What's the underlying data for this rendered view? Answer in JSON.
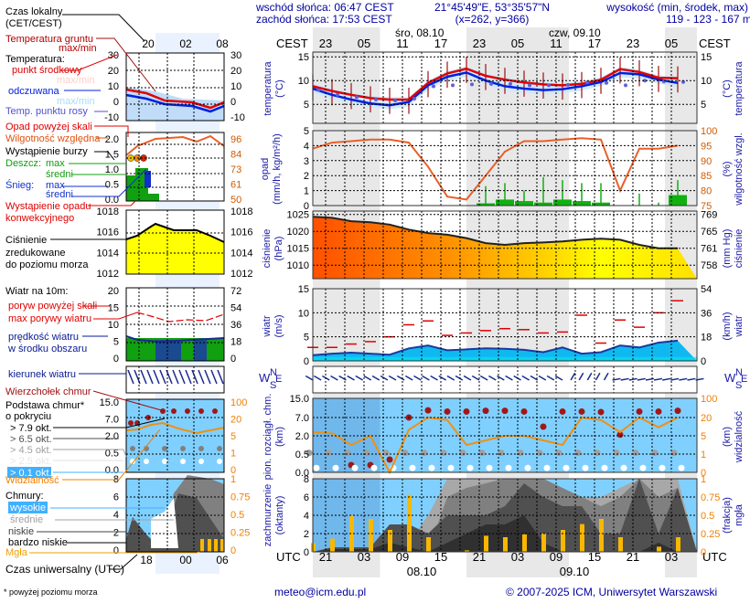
{
  "header": {
    "sunrise": "wschód słońca: 06:47 CEST",
    "sunset": "zachód słońca: 17:53 CEST",
    "coords": "21°45'49\"E, 53°35'57\"N",
    "grid": "(x=262,  y=366)",
    "altitude_title": "wysokość (min, środek, max)",
    "altitude_values": "119 - 123 - 167 m"
  },
  "time_axis": {
    "local_label": "CEST",
    "utc_label": "UTC",
    "local_ticks": [
      "23",
      "05",
      "11",
      "17",
      "23",
      "05",
      "11",
      "17",
      "23",
      "05"
    ],
    "utc_ticks": [
      "21",
      "03",
      "09",
      "15",
      "21",
      "03",
      "09",
      "15",
      "21",
      "03"
    ],
    "day_labels_top": [
      "śro, 08.10",
      "czw, 09.10"
    ],
    "day_labels_bottom": [
      "08.10",
      "09.10"
    ]
  },
  "legend": {
    "local_time": "Czas lokalny",
    "local_time_sub": "(CET/CEST)",
    "local_ticks": [
      "20",
      "02",
      "08"
    ],
    "utc_ticks": [
      "18",
      "00",
      "06"
    ],
    "ground_temp": "Temperatura gruntu",
    "ground_temp_sub": "max/min",
    "temperature": "Temperatura:",
    "mid_point": "punkt środkowy",
    "max_min": "max/min",
    "perceived": "odczuwana",
    "perceived_max_min": "max/min",
    "dew_point": "Temp. punktu rosy",
    "precip_above": "Opad powyżej skali",
    "humidity": "Wilgotność względna",
    "storm": "Wystąpienie burzy",
    "rain": "Deszcz:",
    "rain_max": "max",
    "rain_avg": "średni",
    "snow": "Śnieg:",
    "snow_max": "max",
    "snow_avg": "średni",
    "convective1": "Wystąpienie opadu",
    "convective2": "konwekcyjnego",
    "pressure1": "Ciśnienie",
    "pressure2": "zredukowane",
    "pressure3": "do poziomu morza",
    "wind10": "Wiatr na 10m:",
    "gust_above": "poryw powyżej skali",
    "max_gusts": "max porywy wiatru",
    "wind_speed1": "prędkość wiatru",
    "wind_speed2": "w środku obszaru",
    "wind_dir": "kierunek wiatru",
    "cloud_top": "Wierzchołek chmur",
    "cloud_base1": "Podstawa chmur*",
    "cloud_base2": "o pokryciu",
    "okt79": "> 7.9 okt.",
    "okt65": "> 6.5 okt.",
    "okt45": "> 4.5 okt.",
    "okt25": "> 2.5 okt.",
    "okt01": "> 0.1 okt.",
    "visibility": "Widzialność",
    "clouds": "Chmury:",
    "high": "wysokie",
    "mid": "średnie",
    "low": "niskie",
    "very_low": "bardzo niskie",
    "fog": "Mgła",
    "utc_time": "Czas uniwersalny (UTC)",
    "footnote": "* powyżej poziomu morza",
    "temp_ticks": [
      "30",
      "20",
      "10",
      "0",
      "-10"
    ],
    "precip_ticks": [
      "2.0",
      "1.5",
      "1.0",
      "0.5",
      "0.0"
    ],
    "hum_ticks": [
      "96",
      "84",
      "73",
      "61",
      "50"
    ],
    "press_ticks": [
      "1018",
      "1016",
      "1014",
      "1012"
    ],
    "wind_ticks": [
      "20",
      "15",
      "10",
      "5",
      "0"
    ],
    "wind_kmh_ticks": [
      "72",
      "54",
      "36",
      "18",
      "0"
    ],
    "cloud_ticks": [
      "15.0",
      "7.0",
      "2.0",
      "0.5",
      "0.0"
    ],
    "vis_ticks": [
      "100",
      "20",
      "5",
      "1",
      "0"
    ],
    "okt_ticks": [
      "8",
      "6",
      "4",
      "2",
      "0"
    ],
    "fog_ticks": [
      "1",
      "0.75",
      "0.5",
      "0.25",
      "0"
    ]
  },
  "footer": {
    "email": "meteo@icm.edu.pl",
    "copyright": "© 2007-2025 ICM, Uniwersytet Warszawski"
  },
  "colors": {
    "title_blue": "#0000a0",
    "axis_blue": "#1a1aa8",
    "orange_axis": "#d25a00",
    "temp_red": "#e00000",
    "temp_blue": "#0020e0",
    "humidity_line": "#e8602a",
    "precip_green": "#10b010",
    "gust_red": "#e00000",
    "wind_fill": "#00b8f0",
    "sky": "#80d0ff",
    "vis_line": "#f0a020",
    "fog_bar": "#f8b800"
  },
  "chart_data": [
    {
      "type": "line",
      "title": "temperatura",
      "ylabel": "temperatura (°C)",
      "ylim": [
        1,
        16
      ],
      "yticks": [
        5,
        10,
        15
      ],
      "x_hours_from_start": [
        0,
        3,
        6,
        9,
        12,
        15,
        18,
        21,
        24,
        27,
        30,
        33,
        36,
        39,
        42,
        45,
        48,
        51,
        54,
        57
      ],
      "series": [
        {
          "name": "punkt środkowy",
          "values": [
            8.8,
            7.8,
            7.0,
            6.3,
            6.0,
            6.0,
            9.5,
            11.5,
            12.5,
            11.0,
            10.2,
            9.6,
            9.2,
            9.0,
            9.3,
            10.2,
            12.4,
            11.8,
            10.6,
            10.5
          ]
        },
        {
          "name": "odczuwana",
          "values": [
            8.3,
            7.0,
            6.0,
            5.2,
            4.8,
            5.5,
            9.0,
            10.8,
            11.7,
            10.0,
            8.8,
            8.3,
            8.0,
            8.2,
            8.8,
            9.7,
            11.6,
            11.3,
            10.2,
            9.5
          ]
        },
        {
          "name": "temp. punktu rosy",
          "values": [
            8.0,
            7.0,
            6.5,
            6.0,
            5.8,
            6.2,
            8.8,
            9.0,
            9.2,
            9.3,
            9.3,
            9.0,
            9.0,
            9.1,
            9.6,
            9.5,
            9.0,
            10.0,
            9.8,
            9.7
          ]
        }
      ]
    },
    {
      "type": "bar",
      "title": "opad / wilgotność względna",
      "ylabel": "opad (mm/h, kg/m²/h)",
      "ylim": [
        0,
        5
      ],
      "y2label": "wilgotność wzgl. (%)",
      "y2lim": [
        75,
        100
      ],
      "x_hours_from_start": [
        0,
        3,
        6,
        9,
        12,
        15,
        18,
        21,
        24,
        27,
        30,
        33,
        36,
        39,
        42,
        45,
        48,
        51,
        54,
        57
      ],
      "series": [
        {
          "name": "wilgotność względna",
          "axis": "y2",
          "values": [
            94,
            96,
            96.5,
            97,
            97,
            96,
            88,
            78,
            77,
            85,
            93,
            96.5,
            96.5,
            97,
            97.5,
            97,
            80,
            94,
            94,
            95
          ]
        },
        {
          "name": "deszcz średni",
          "values": [
            0,
            0,
            0,
            0,
            0,
            0,
            0,
            0,
            0,
            0.15,
            0.4,
            0.3,
            0.2,
            0.4,
            0.3,
            0.2,
            0,
            0,
            0,
            0.7
          ]
        },
        {
          "name": "deszcz max",
          "values": [
            0,
            0,
            0,
            0,
            0,
            0,
            0,
            0,
            0,
            1.3,
            1.5,
            1.0,
            1.9,
            1.7,
            1.5,
            1.5,
            0,
            0.8,
            0.2,
            1.7
          ]
        }
      ]
    },
    {
      "type": "area",
      "title": "ciśnienie",
      "ylabel": "ciśnienie (hPa)",
      "ylim": [
        1006,
        1026
      ],
      "yticks": [
        1010,
        1015,
        1020,
        1025
      ],
      "y2label": "ciśnienie (mm Hg)",
      "y2ticks": [
        758,
        761,
        765,
        769
      ],
      "x_hours_from_start": [
        0,
        3,
        6,
        9,
        12,
        15,
        18,
        21,
        24,
        27,
        30,
        33,
        36,
        39,
        42,
        45,
        48,
        51,
        54,
        57
      ],
      "values": [
        1024.3,
        1024.0,
        1023.0,
        1022.7,
        1022.0,
        1020.5,
        1019.5,
        1019.0,
        1018.0,
        1016.5,
        1016.0,
        1016.5,
        1016.7,
        1017.0,
        1017.5,
        1017.8,
        1017.5,
        1016.0,
        1015.0,
        1015.0
      ]
    },
    {
      "type": "line",
      "title": "wiatr",
      "ylabel": "wiatr (m/s)",
      "ylim": [
        0,
        15
      ],
      "yticks": [
        0,
        5,
        10,
        15
      ],
      "y2label": "wiatr (km/h)",
      "y2ticks": [
        0,
        18,
        36,
        54
      ],
      "x_hours_from_start": [
        0,
        3,
        6,
        9,
        12,
        15,
        18,
        21,
        24,
        27,
        30,
        33,
        36,
        39,
        42,
        45,
        48,
        51,
        54,
        57
      ],
      "series": [
        {
          "name": "max porywy wiatru",
          "values": [
            2.8,
            2.8,
            3.5,
            4.0,
            5.0,
            7.5,
            8.3,
            5.3,
            5.8,
            6.3,
            6.7,
            6.5,
            5.8,
            6.0,
            9.5,
            3.7,
            8.5,
            7.0,
            10.0,
            12.5
          ]
        },
        {
          "name": "prędkość wiatru",
          "values": [
            1.2,
            1.5,
            1.7,
            1.5,
            1.3,
            2.6,
            3.2,
            2.2,
            2.4,
            2.6,
            2.5,
            2.3,
            1.8,
            2.8,
            1.5,
            1.8,
            3.2,
            2.8,
            3.8,
            4.2
          ]
        }
      ]
    },
    {
      "type": "scatter",
      "title": "pion. rozciągł. chm. / widzialność",
      "ylabel": "pion. rozciągł. chm. (km)",
      "yticks": [
        0.0,
        0.5,
        2.0,
        7.0,
        15.0
      ],
      "y2label": "widzialność (km)",
      "y2ticks": [
        0,
        1,
        5,
        20,
        100
      ],
      "x_hours_from_start": [
        0,
        3,
        6,
        9,
        12,
        15,
        18,
        21,
        24,
        27,
        30,
        33,
        36,
        39,
        42,
        45,
        48,
        51,
        54,
        57
      ],
      "series": [
        {
          "name": "wierzchołek chmur",
          "values": [
            null,
            null,
            0.2,
            0.2,
            0.35,
            7.0,
            10.0,
            9.5,
            9.5,
            9.8,
            9.8,
            9.5,
            4.5,
            9.5,
            9.5,
            9.3,
            2.3,
            9.5,
            9.5,
            9.8
          ]
        },
        {
          "name": "widzialność",
          "axis": "y2",
          "values": [
            8,
            7,
            3,
            5,
            0,
            10,
            20,
            18,
            3,
            4,
            5,
            5,
            4,
            3,
            20,
            18,
            8,
            20,
            12,
            20
          ]
        }
      ]
    },
    {
      "type": "area",
      "title": "zachmurzenie / mgła",
      "ylabel": "zachmurzenie (oktanty)",
      "ylim": [
        0,
        8
      ],
      "y2label": "mgła (frakcja)",
      "y2ticks": [
        0,
        0.25,
        0.5,
        0.75,
        1
      ],
      "x_hours_from_start": [
        0,
        3,
        6,
        9,
        12,
        15,
        18,
        21,
        24,
        27,
        30,
        33,
        36,
        39,
        42,
        45,
        48,
        51,
        54,
        57
      ],
      "series": [
        {
          "name": "chmury wysokie",
          "values": [
            0,
            0,
            0,
            0,
            0,
            1,
            4,
            8,
            8,
            8,
            8,
            8,
            7,
            6,
            6,
            6,
            7,
            8,
            8,
            8
          ]
        },
        {
          "name": "chmury średnie",
          "values": [
            0,
            0,
            0,
            0,
            0,
            0,
            0,
            6,
            7,
            7.5,
            8,
            8,
            8,
            7,
            6,
            5,
            6,
            8,
            6,
            7
          ]
        },
        {
          "name": "chmury niskie",
          "values": [
            0,
            0.5,
            0.5,
            0.5,
            3,
            3,
            2,
            4,
            4,
            4,
            5,
            7.5,
            6,
            5,
            5,
            2,
            2,
            8,
            2,
            7
          ]
        },
        {
          "name": "chmury bardzo niskie",
          "values": [
            0,
            0.3,
            0.3,
            0.3,
            1,
            0.5,
            0,
            1,
            2,
            3,
            3,
            4,
            1,
            0,
            0,
            0,
            0,
            0,
            1,
            0
          ]
        },
        {
          "name": "mgła",
          "axis": "y2",
          "values": [
            0.12,
            0.18,
            0.5,
            0.45,
            0.3,
            0.78,
            0.2,
            0,
            0.02,
            0.22,
            0.2,
            0.24,
            0.25,
            0.3,
            0.38,
            0.45,
            0.2,
            0,
            0.07,
            0.2
          ]
        }
      ]
    }
  ]
}
